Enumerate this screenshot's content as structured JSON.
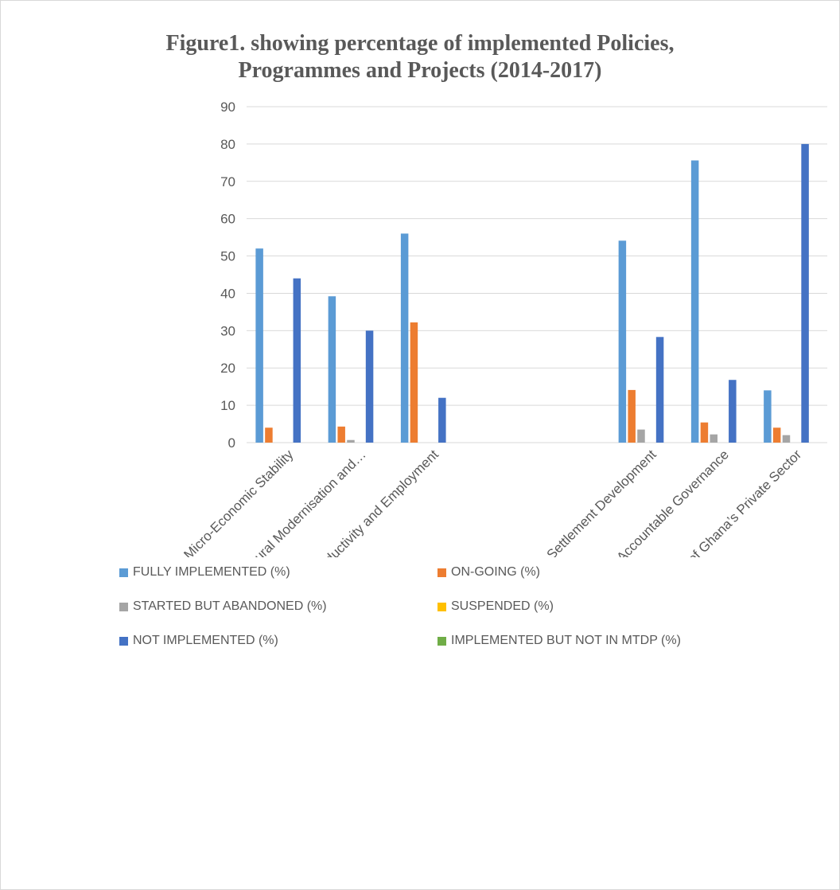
{
  "chart_data": {
    "type": "bar",
    "title": [
      "Figure1. showing percentage of implemented Policies,",
      "Programmes and Projects (2014-2017)"
    ],
    "categories": [
      "Ensuring and Sustaining Micro-Economic Stability",
      "Accelerated Agricultural Modernisation and…",
      "Human Development, Productivity and Employment",
      "",
      "",
      "Infrastructure and Human Settlement Development",
      "Transparent and Accountable Governance",
      "Enhancing Competitiveness of Ghana’s Private Sector"
    ],
    "ylim": [
      0,
      90
    ],
    "yticks": [
      0,
      10,
      20,
      30,
      40,
      50,
      60,
      70,
      80,
      90
    ],
    "grid": true,
    "legend_position": "bottom",
    "series": [
      {
        "name": "FULLY IMPLEMENTED (%)",
        "color": "#5b9bd5",
        "values": [
          52,
          39.2,
          56,
          0,
          0,
          54.1,
          75.6,
          14
        ]
      },
      {
        "name": "ON-GOING (%)",
        "color": "#ed7d31",
        "values": [
          4,
          4.3,
          32.2,
          0,
          0,
          14.1,
          5.4,
          4
        ]
      },
      {
        "name": "STARTED BUT ABANDONED (%)",
        "color": "#a5a5a5",
        "values": [
          0,
          0.7,
          0,
          0,
          0,
          3.5,
          2.2,
          2
        ]
      },
      {
        "name": "SUSPENDED (%)",
        "color": "#ffc000",
        "values": [
          0,
          0,
          0,
          0,
          0,
          0,
          0,
          0
        ]
      },
      {
        "name": "NOT IMPLEMENTED (%)",
        "color": "#4472c4",
        "values": [
          44,
          30,
          12,
          0,
          0,
          28.3,
          16.8,
          80
        ]
      },
      {
        "name": "IMPLEMENTED BUT NOT IN MTDP (%)",
        "color": "#70ad47",
        "values": [
          0,
          0,
          0,
          0,
          0,
          0,
          0,
          0
        ]
      }
    ]
  }
}
